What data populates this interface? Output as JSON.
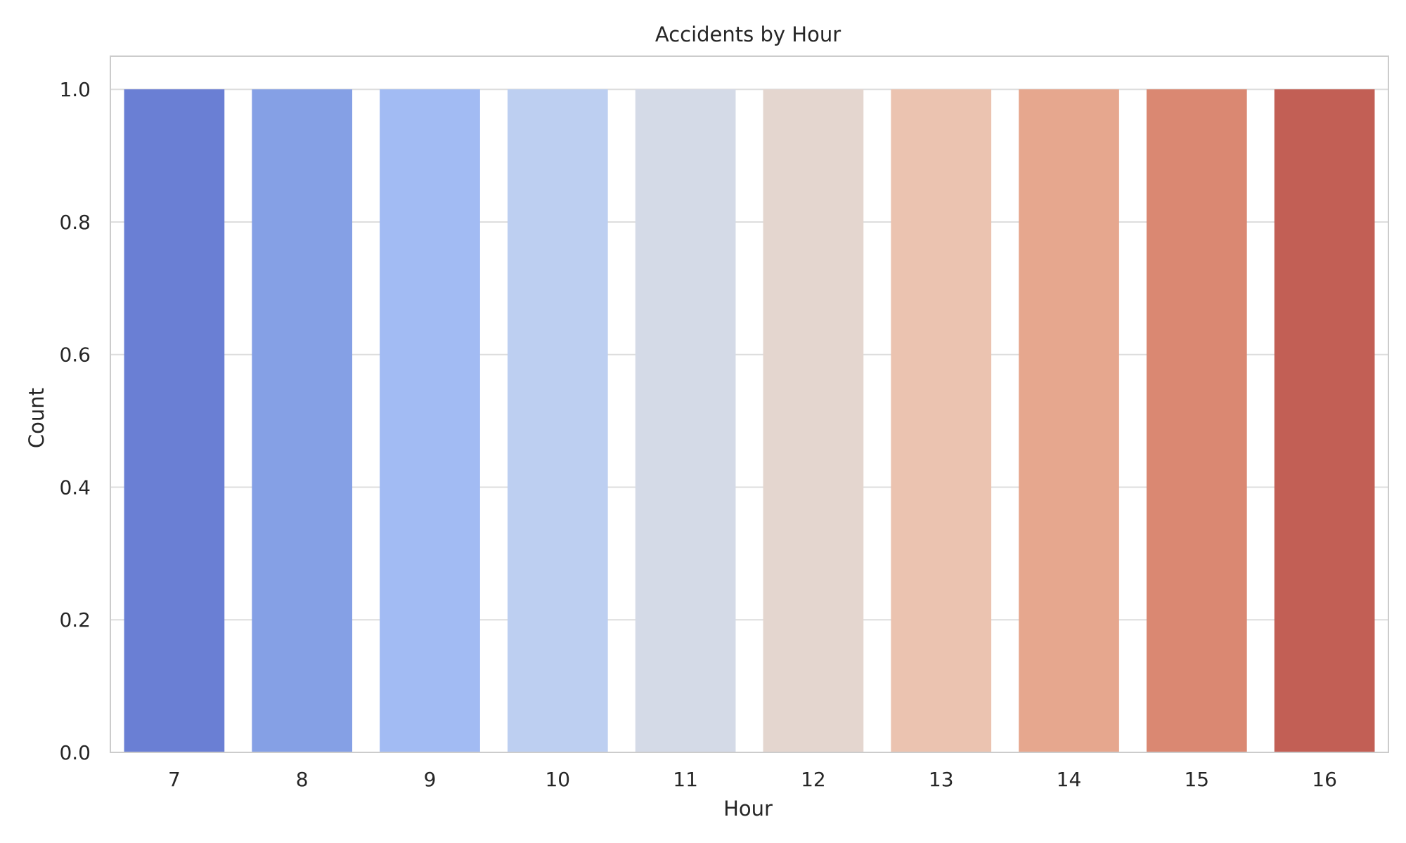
{
  "chart_data": {
    "type": "bar",
    "title": "Accidents by Hour",
    "xlabel": "Hour",
    "ylabel": "Count",
    "categories": [
      "7",
      "8",
      "9",
      "10",
      "11",
      "12",
      "13",
      "14",
      "15",
      "16"
    ],
    "values": [
      1,
      1,
      1,
      1,
      1,
      1,
      1,
      1,
      1,
      1
    ],
    "ylim": [
      0,
      1.05
    ],
    "yticks": [
      "0.0",
      "0.2",
      "0.4",
      "0.6",
      "0.8",
      "1.0"
    ],
    "grid": true,
    "legend": "none",
    "colors": [
      "#6a7fd4",
      "#85a0e5",
      "#a2bbf3",
      "#bdcff1",
      "#d4dae7",
      "#e4d6cf",
      "#ebc3b0",
      "#e6a78e",
      "#da8872",
      "#c25f55"
    ],
    "axis_color": "#cccccc",
    "grid_color": "#dddddd"
  }
}
